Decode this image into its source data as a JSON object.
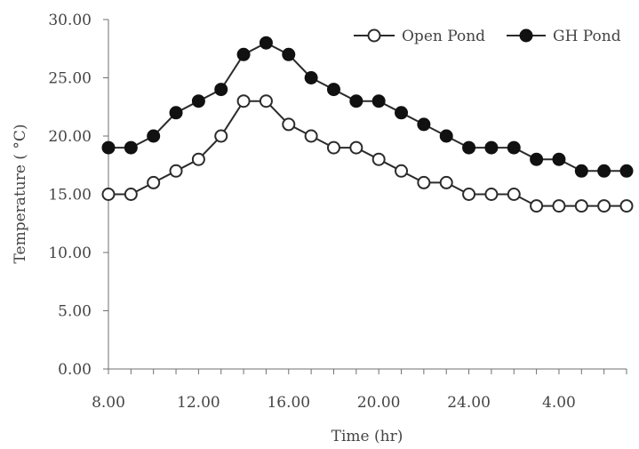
{
  "chart_data": {
    "type": "line",
    "xlabel": "Time (hr)",
    "ylabel": "Temperature ( °C)",
    "ylim": [
      0,
      30
    ],
    "yticks": [
      "0.00",
      "5.00",
      "10.00",
      "15.00",
      "20.00",
      "25.00",
      "30.00"
    ],
    "xtick_labels": [
      "8.00",
      "12.00",
      "16.00",
      "20.00",
      "24.00",
      "4.00"
    ],
    "x_hours": [
      8,
      9,
      10,
      11,
      12,
      13,
      14,
      15,
      16,
      17,
      18,
      19,
      20,
      21,
      22,
      23,
      24,
      25,
      26,
      27,
      28,
      29,
      30,
      31
    ],
    "xlim": [
      8,
      31
    ],
    "grid": false,
    "legend_position": "top-right",
    "series": [
      {
        "name": "Open Pond",
        "marker": "open-circle",
        "values": [
          15,
          15,
          16,
          17,
          18,
          20,
          23,
          23,
          21,
          20,
          19,
          19,
          18,
          17,
          16,
          16,
          15,
          15,
          15,
          14,
          14,
          14,
          14,
          14
        ]
      },
      {
        "name": "GH Pond",
        "marker": "filled-circle",
        "values": [
          19,
          19,
          20,
          22,
          23,
          24,
          27,
          28,
          27,
          25,
          24,
          23,
          23,
          22,
          21,
          20,
          19,
          19,
          19,
          18,
          18,
          17,
          17,
          17
        ]
      }
    ],
    "colors": {
      "line": "#2b2b2b",
      "axis": "#6f6f6f",
      "text": "#444444",
      "open_fill": "#ffffff",
      "filled_fill": "#111111"
    }
  }
}
